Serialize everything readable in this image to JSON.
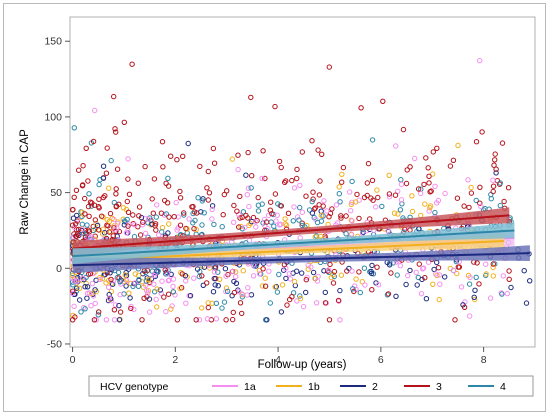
{
  "chart_data": {
    "type": "scatter",
    "title": "",
    "xlabel": "Follow-up (years)",
    "ylabel": "Raw Change in CAP",
    "xlim": [
      -0.05,
      9.0
    ],
    "ylim": [
      -52,
      166
    ],
    "xticks": [
      0,
      2,
      4,
      6,
      8
    ],
    "yticks": [
      -50,
      0,
      50,
      100,
      150
    ],
    "grid": false,
    "marker": "open-circle",
    "legend": {
      "title": "HCV genotype",
      "placement": "bottom"
    },
    "series": [
      {
        "name": "1a",
        "color": "#f58ef0",
        "band_color": "#f7bdf3",
        "fit": {
          "x": [
            0,
            8.6
          ],
          "y": [
            7,
            20
          ]
        },
        "cloud": {
          "x_max": 8.5,
          "center_at_0": 3,
          "center_at_x_max": 20,
          "spread": 20,
          "count": 340
        }
      },
      {
        "name": "1b",
        "color": "#f2b01e",
        "band_color": "#f7d07a",
        "fit": {
          "x": [
            0,
            8.4
          ],
          "y": [
            5,
            18
          ]
        },
        "cloud": {
          "x_max": 8.3,
          "center_at_0": 4,
          "center_at_x_max": 18,
          "spread": 16,
          "count": 230
        }
      },
      {
        "name": "2",
        "color": "#1d2a80",
        "band_color": "#6c74b8",
        "fit": {
          "x": [
            0,
            8.9
          ],
          "y": [
            2,
            10
          ]
        },
        "cloud": {
          "x_max": 8.9,
          "center_at_0": 1,
          "center_at_x_max": 9,
          "spread": 14,
          "count": 240
        }
      },
      {
        "name": "3",
        "color": "#b5121b",
        "band_color": "#c8585e",
        "fit": {
          "x": [
            0,
            8.5
          ],
          "y": [
            13,
            35
          ]
        },
        "cloud": {
          "x_max": 8.5,
          "center_at_0": 20,
          "center_at_x_max": 32,
          "spread": 28,
          "count": 440
        }
      },
      {
        "name": "4",
        "color": "#2d88a8",
        "band_color": "#7fbdd3",
        "fit": {
          "x": [
            0,
            8.6
          ],
          "y": [
            8,
            25
          ]
        },
        "cloud": {
          "x_max": 8.6,
          "center_at_0": 8,
          "center_at_x_max": 24,
          "spread": 18,
          "count": 280
        }
      }
    ]
  }
}
